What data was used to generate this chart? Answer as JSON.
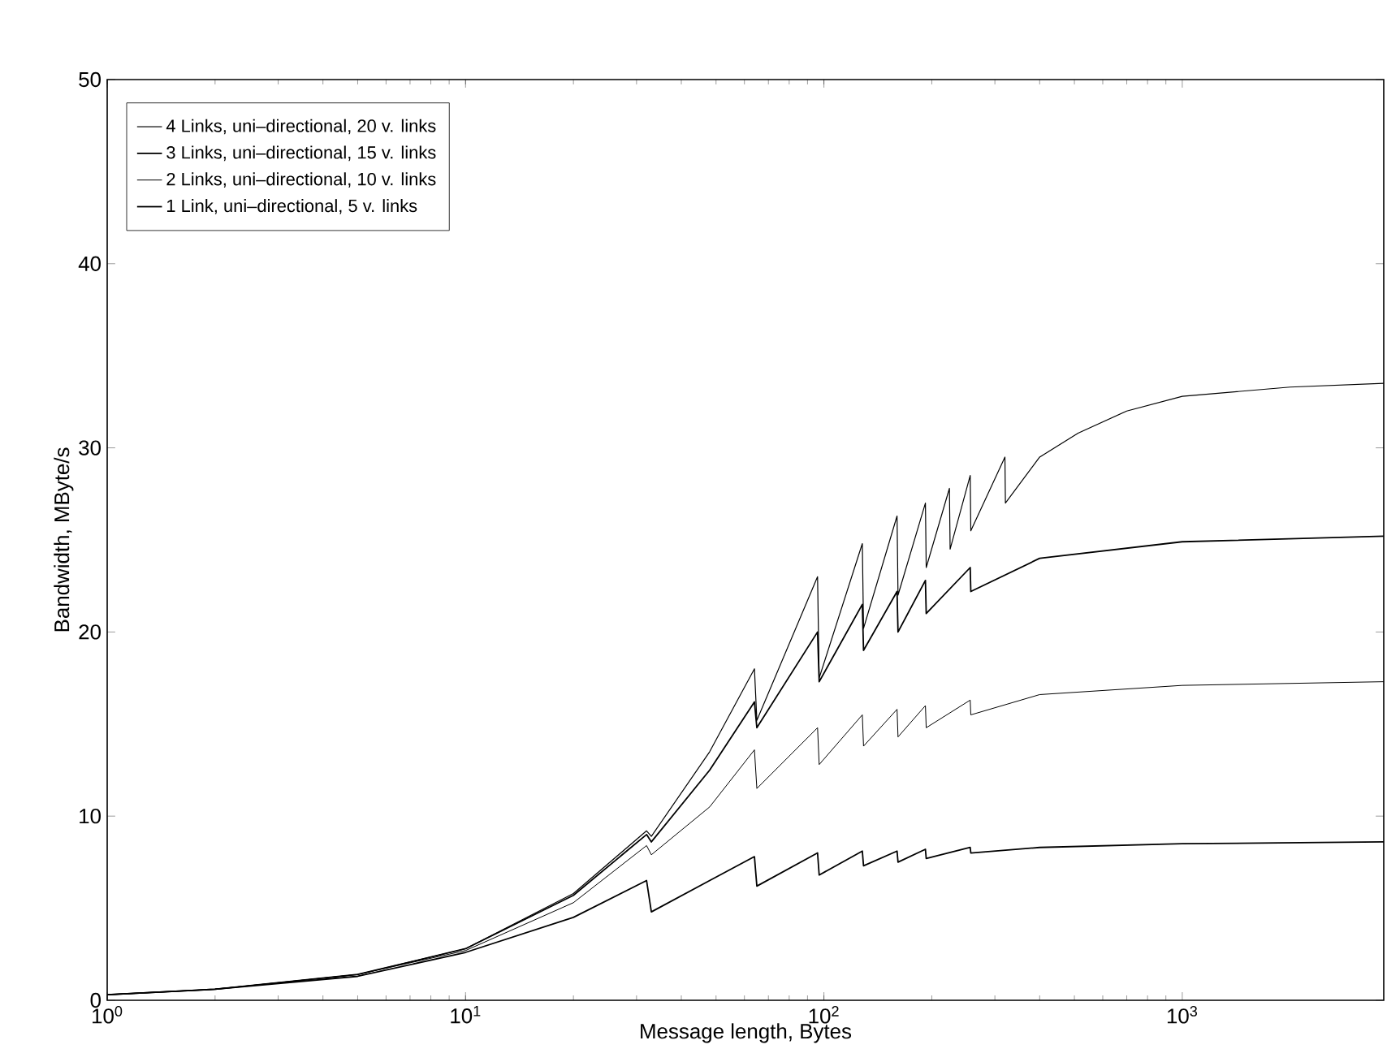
{
  "chart_data": {
    "type": "line",
    "xlabel": "Message length, Bytes",
    "ylabel": "Bandwidth, MByte/s",
    "log": "x",
    "legend": "top left",
    "grid": false,
    "marker": "none",
    "line_style": "solid",
    "xlim": [
      1,
      3650
    ],
    "ylim": [
      0,
      50
    ],
    "xticks": [
      {
        "value": 1,
        "label": "10$^{0}$"
      },
      {
        "value": 10,
        "label": "10$^{1}$"
      },
      {
        "value": 100,
        "label": "10$^{2}$"
      },
      {
        "value": 1000,
        "label": "10$^{3}$"
      }
    ],
    "yticks": [
      0,
      10,
      20,
      30,
      40,
      50
    ],
    "series": [
      {
        "name": "4 Links, uni–directional, 20 v. links",
        "color": "#000000",
        "x": [
          1,
          2,
          5,
          10,
          20,
          32,
          33,
          48,
          64,
          65,
          96,
          97,
          128,
          129,
          160,
          161,
          192,
          193,
          224,
          225,
          256,
          257,
          320,
          321,
          400,
          512,
          700,
          1000,
          2000,
          3650
        ],
        "values": [
          0.3,
          0.6,
          1.4,
          2.8,
          5.8,
          9.2,
          8.9,
          13.5,
          18,
          15.2,
          23,
          17.5,
          24.8,
          20.2,
          26.3,
          22,
          27,
          23.5,
          27.8,
          24.5,
          28.5,
          25.5,
          29.5,
          27,
          29.5,
          30.8,
          32,
          32.8,
          33.3,
          33.5
        ]
      },
      {
        "name": "3 Links, uni–directional, 15 v. links",
        "color": "#000000",
        "x": [
          1,
          2,
          5,
          10,
          20,
          32,
          33,
          48,
          64,
          65,
          96,
          97,
          128,
          129,
          160,
          161,
          192,
          193,
          256,
          257,
          400,
          1000,
          3650
        ],
        "values": [
          0.3,
          0.6,
          1.4,
          2.8,
          5.7,
          9.0,
          8.6,
          12.5,
          16.2,
          14.8,
          20,
          17.3,
          21.5,
          19,
          22.2,
          20,
          22.8,
          21,
          23.5,
          22.2,
          24,
          24.9,
          25.2
        ]
      },
      {
        "name": "2 Links, uni–directional, 10 v. links",
        "color": "#000000",
        "x": [
          1,
          2,
          5,
          10,
          20,
          32,
          33,
          48,
          64,
          65,
          96,
          97,
          128,
          129,
          160,
          161,
          192,
          193,
          256,
          257,
          400,
          1000,
          3650
        ],
        "values": [
          0.3,
          0.6,
          1.4,
          2.7,
          5.3,
          8.4,
          7.9,
          10.5,
          13.6,
          11.5,
          14.8,
          12.8,
          15.5,
          13.8,
          15.8,
          14.3,
          16,
          14.8,
          16.3,
          15.5,
          16.6,
          17.1,
          17.3
        ]
      },
      {
        "name": "1 Link, uni–directional, 5 v. links",
        "color": "#000000",
        "x": [
          1,
          2,
          5,
          10,
          20,
          32,
          33,
          48,
          64,
          65,
          96,
          97,
          128,
          129,
          160,
          161,
          192,
          193,
          256,
          257,
          400,
          1000,
          3650
        ],
        "values": [
          0.3,
          0.6,
          1.3,
          2.6,
          4.5,
          6.5,
          4.8,
          6.5,
          7.8,
          6.2,
          8.0,
          6.8,
          8.1,
          7.3,
          8.1,
          7.5,
          8.2,
          7.7,
          8.3,
          8.0,
          8.3,
          8.5,
          8.6
        ]
      }
    ]
  }
}
